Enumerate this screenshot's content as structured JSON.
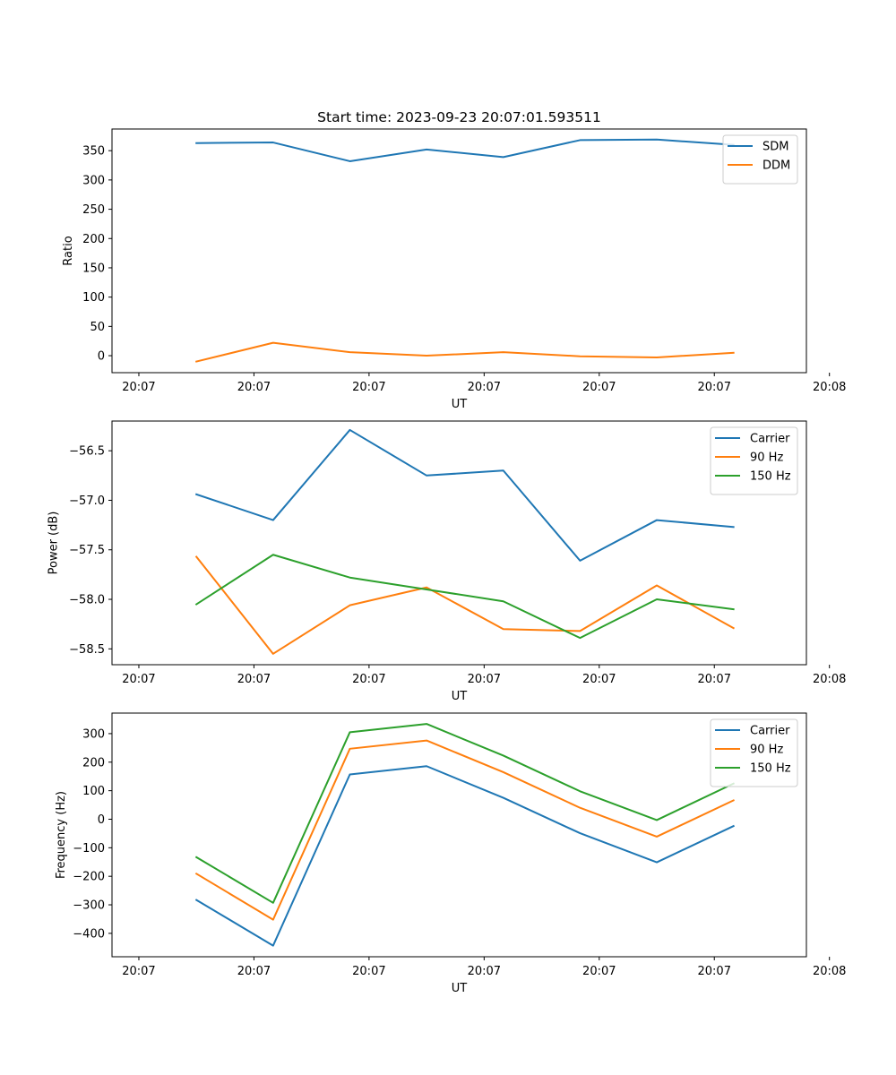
{
  "chart_data": [
    {
      "type": "line",
      "title": "Start time: 2023-09-23 20:07:01.593511",
      "xlabel": "UT",
      "ylabel": "Ratio",
      "xlim": [
        -0.6,
        8.45
      ],
      "xticks": [
        -0.25,
        1.25,
        2.75,
        4.25,
        5.75,
        7.25,
        8.75
      ],
      "xticklabels": [
        "20:07",
        "20:07",
        "20:07",
        "20:07",
        "20:07",
        "20:07",
        "20:08"
      ],
      "ylim": [
        -29,
        387
      ],
      "yticks": [
        0,
        50,
        100,
        150,
        200,
        250,
        300,
        350
      ],
      "yticklabels": [
        "0",
        "50",
        "100",
        "150",
        "200",
        "250",
        "300",
        "350"
      ],
      "legend_position": "top-right",
      "x": [
        0.5,
        1.5,
        2.5,
        3.5,
        4.5,
        5.5,
        6.5,
        7.5
      ],
      "series": [
        {
          "name": "SDM",
          "color": "#1f77b4",
          "values": [
            363,
            364,
            332,
            352,
            339,
            368,
            369,
            360
          ]
        },
        {
          "name": "DDM",
          "color": "#ff7f0e",
          "values": [
            -10,
            22,
            6,
            0,
            6,
            -1,
            -3,
            5
          ]
        }
      ]
    },
    {
      "type": "line",
      "title": "",
      "xlabel": "UT",
      "ylabel": "Power (dB)",
      "xlim": [
        -0.6,
        8.45
      ],
      "xticks": [
        -0.25,
        1.25,
        2.75,
        4.25,
        5.75,
        7.25,
        8.75
      ],
      "xticklabels": [
        "20:07",
        "20:07",
        "20:07",
        "20:07",
        "20:07",
        "20:07",
        "20:08"
      ],
      "ylim": [
        -58.66,
        -56.2
      ],
      "yticks": [
        -58.5,
        -58.0,
        -57.5,
        -57.0,
        -56.5
      ],
      "yticklabels": [
        "−58.5",
        "−58.0",
        "−57.5",
        "−57.0",
        "−56.5"
      ],
      "legend_position": "top-right",
      "x": [
        0.5,
        1.5,
        2.5,
        3.5,
        4.5,
        5.5,
        6.5,
        7.5
      ],
      "series": [
        {
          "name": "Carrier",
          "color": "#1f77b4",
          "values": [
            -56.94,
            -57.2,
            -56.29,
            -56.75,
            -56.7,
            -57.61,
            -57.2,
            -57.27
          ]
        },
        {
          "name": "90 Hz",
          "color": "#ff7f0e",
          "values": [
            -57.57,
            -58.55,
            -58.06,
            -57.88,
            -58.3,
            -58.32,
            -57.86,
            -58.29
          ]
        },
        {
          "name": "150 Hz",
          "color": "#2ca02c",
          "values": [
            -58.05,
            -57.55,
            -57.78,
            -57.9,
            -58.02,
            -58.39,
            -58.0,
            -58.1
          ]
        }
      ]
    },
    {
      "type": "line",
      "title": "",
      "xlabel": "UT",
      "ylabel": "Frequency (Hz)",
      "xlim": [
        -0.6,
        8.45
      ],
      "xticks": [
        -0.25,
        1.25,
        2.75,
        4.25,
        5.75,
        7.25,
        8.75
      ],
      "xticklabels": [
        "20:07",
        "20:07",
        "20:07",
        "20:07",
        "20:07",
        "20:07",
        "20:08"
      ],
      "ylim": [
        -482,
        372
      ],
      "yticks": [
        -400,
        -300,
        -200,
        -100,
        0,
        100,
        200,
        300
      ],
      "yticklabels": [
        "−400",
        "−300",
        "−200",
        "−100",
        "0",
        "100",
        "200",
        "300"
      ],
      "legend_position": "top-right",
      "x": [
        0.5,
        1.5,
        2.5,
        3.5,
        4.5,
        5.5,
        6.5,
        7.5
      ],
      "series": [
        {
          "name": "Carrier",
          "color": "#1f77b4",
          "values": [
            -283,
            -443,
            157,
            186,
            75,
            -49,
            -151,
            -24
          ]
        },
        {
          "name": "90 Hz",
          "color": "#ff7f0e",
          "values": [
            -191,
            -352,
            247,
            276,
            165,
            40,
            -61,
            66
          ]
        },
        {
          "name": "150 Hz",
          "color": "#2ca02c",
          "values": [
            -133,
            -293,
            305,
            334,
            223,
            98,
            -3,
            125
          ]
        }
      ]
    }
  ]
}
